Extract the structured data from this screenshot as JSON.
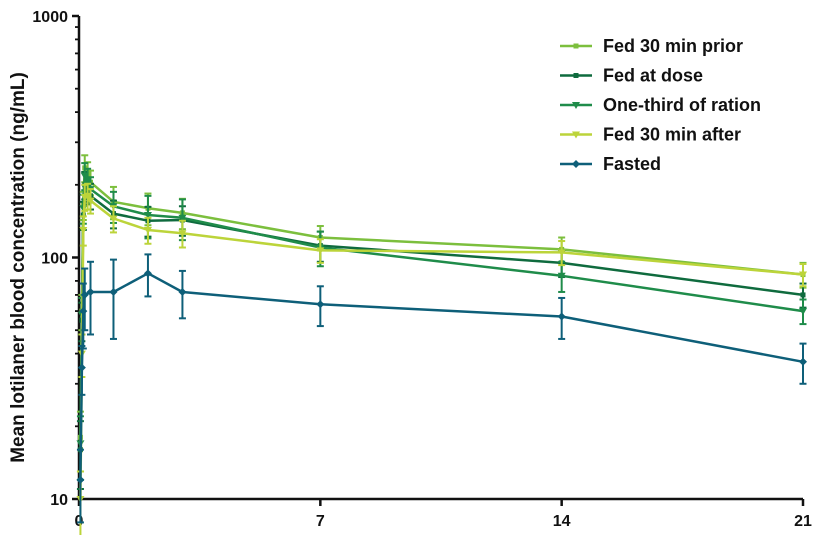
{
  "chart_data": {
    "type": "line",
    "title": "",
    "xlabel": "",
    "ylabel": "Mean lotilaner blood concentration (ng/mL)",
    "yscale": "log",
    "xlim": [
      0,
      21
    ],
    "ylim": [
      10,
      1000
    ],
    "xticks": [
      0,
      7,
      14,
      21
    ],
    "xtick_labels": [
      "0",
      "7",
      "14",
      "21"
    ],
    "yticks": [
      10,
      100,
      1000
    ],
    "ytick_labels": [
      "10",
      "100",
      "1000"
    ],
    "grid": false,
    "legend_position": "top-right",
    "series": [
      {
        "name": "Fed 30 min prior",
        "color": "#7cbf3d",
        "marker": "square",
        "x": [
          0.0417,
          0.0833,
          0.125,
          0.1667,
          0.25,
          0.3333,
          1,
          2,
          3,
          7,
          14,
          21
        ],
        "y": [
          18,
          60,
          165,
          235,
          222,
          205,
          170,
          160,
          153,
          121,
          108,
          85
        ],
        "err": [
          5,
          10,
          22,
          30,
          26,
          24,
          26,
          24,
          22,
          14,
          13,
          10
        ]
      },
      {
        "name": "Fed at dose",
        "color": "#0f6b3e",
        "marker": "square",
        "x": [
          0.0417,
          0.0833,
          0.125,
          0.1667,
          0.25,
          0.3333,
          1,
          2,
          3,
          7,
          14,
          21
        ],
        "y": [
          16,
          55,
          150,
          200,
          190,
          180,
          152,
          142,
          143,
          112,
          95,
          70
        ],
        "err": [
          5,
          10,
          20,
          26,
          24,
          22,
          20,
          20,
          20,
          16,
          12,
          8
        ]
      },
      {
        "name": "One-third of ration",
        "color": "#1f8c4a",
        "marker": "triangle-down",
        "x": [
          0.0417,
          0.0833,
          0.125,
          0.1667,
          0.25,
          0.3333,
          1,
          2,
          3,
          7,
          14,
          21
        ],
        "y": [
          17,
          58,
          160,
          218,
          208,
          192,
          163,
          150,
          146,
          110,
          84,
          60
        ],
        "err": [
          5,
          10,
          22,
          28,
          25,
          23,
          24,
          30,
          28,
          18,
          12,
          7
        ]
      },
      {
        "name": "Fed 30 min after",
        "color": "#bcd43a",
        "marker": "triangle-down",
        "x": [
          0.0417,
          0.0833,
          0.125,
          0.1667,
          0.25,
          0.3333,
          1,
          2,
          3,
          7,
          14,
          21
        ],
        "y": [
          10,
          40,
          130,
          178,
          180,
          172,
          145,
          130,
          126,
          107,
          105,
          85
        ],
        "err": [
          3,
          8,
          18,
          22,
          22,
          20,
          18,
          16,
          16,
          12,
          12,
          9
        ]
      },
      {
        "name": "Fasted",
        "color": "#0e5f79",
        "marker": "diamond",
        "x": [
          0.0417,
          0.0833,
          0.125,
          0.1667,
          0.3333,
          1,
          2,
          3,
          7,
          14,
          21
        ],
        "y": [
          12,
          35,
          60,
          70,
          72,
          72,
          86,
          72,
          64,
          57,
          37
        ],
        "err": [
          4,
          8,
          18,
          20,
          24,
          26,
          17,
          16,
          12,
          11,
          7
        ]
      }
    ]
  }
}
